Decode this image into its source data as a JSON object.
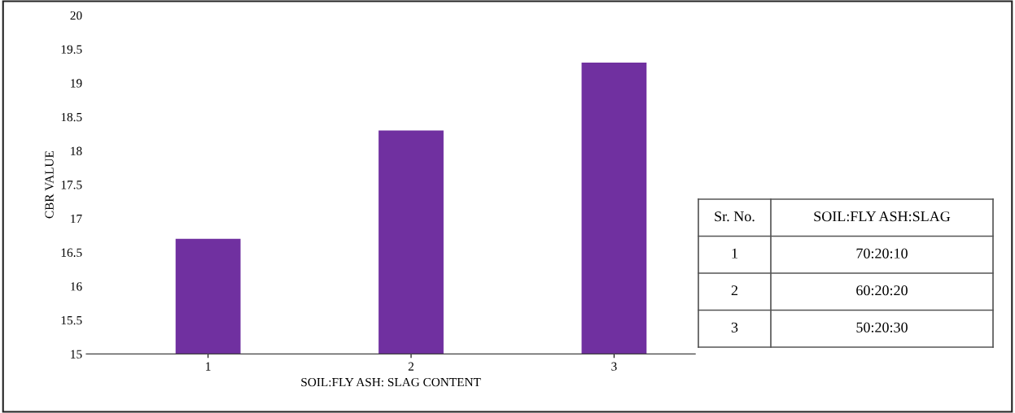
{
  "chart_data": {
    "type": "bar",
    "xlabel": "SOIL:FLY ASH: SLAG CONTENT",
    "ylabel": "CBR VALUE",
    "categories": [
      "1",
      "2",
      "3"
    ],
    "values": [
      16.7,
      18.3,
      19.3
    ],
    "color": "#7030a0",
    "ylim": [
      15,
      20
    ],
    "yticks": [
      15,
      15.5,
      16,
      16.5,
      17,
      17.5,
      18,
      18.5,
      19,
      19.5,
      20
    ],
    "grid": false,
    "legend": false,
    "annotations": [
      "Sr. No.",
      "SOIL:FLY ASH:SLAG",
      "1",
      "70:20:10",
      "2",
      "60:20:20",
      "3",
      "50:20:30"
    ]
  }
}
